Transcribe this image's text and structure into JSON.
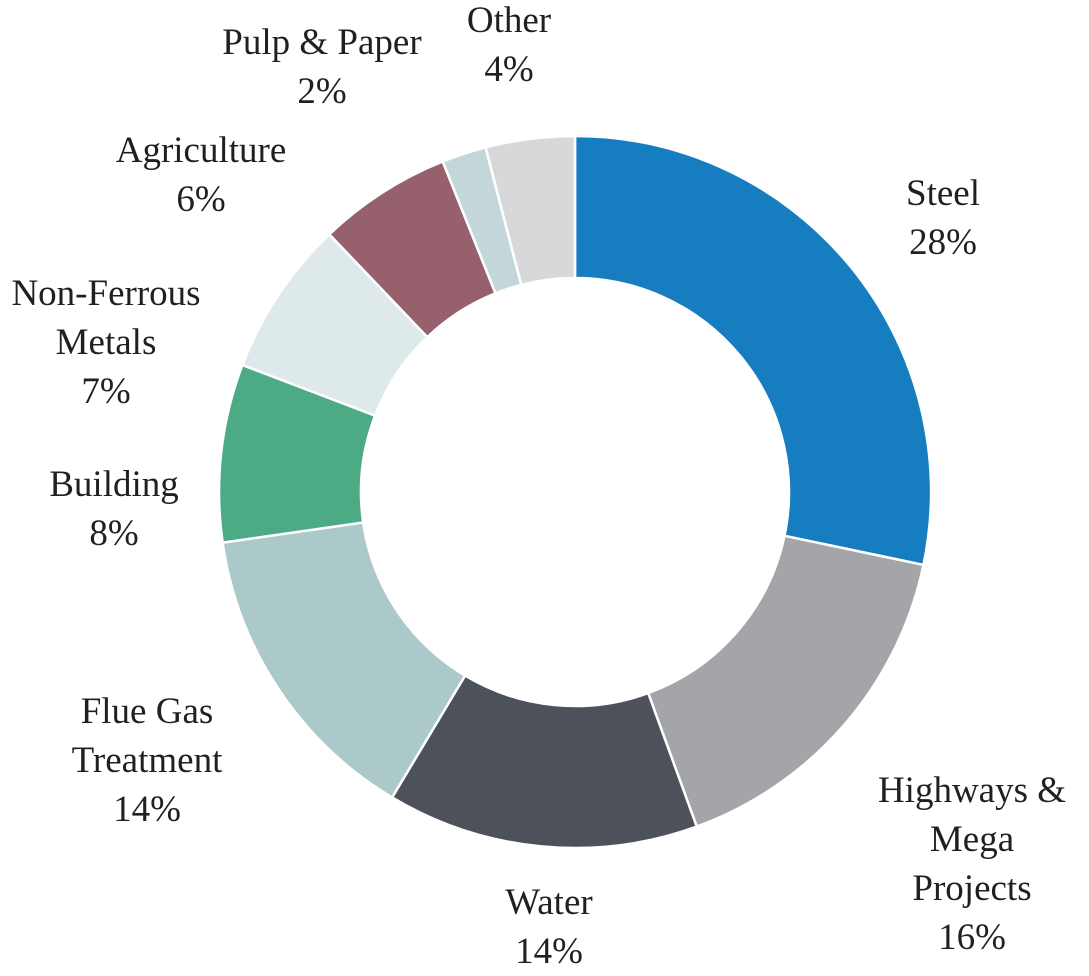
{
  "chart_data": {
    "type": "pie",
    "variant": "donut",
    "title": "",
    "legend": "none",
    "slices": [
      {
        "lines": [
          "Steel"
        ],
        "value": 28,
        "pct_label": "28%",
        "color": "#167dc1"
      },
      {
        "lines": [
          "Highways &",
          "Mega",
          "Projects"
        ],
        "value": 16,
        "pct_label": "16%",
        "color": "#a3a5a8"
      },
      {
        "lines": [
          "Water"
        ],
        "value": 14,
        "pct_label": "14%",
        "color": "#4d525a"
      },
      {
        "lines": [
          "Flue Gas",
          "Treatment"
        ],
        "value": 14,
        "pct_label": "14%",
        "color": "#acc9ca"
      },
      {
        "lines": [
          "Building"
        ],
        "value": 8,
        "pct_label": "8%",
        "color": "#4caa85"
      },
      {
        "lines": [
          "Non-Ferrous",
          "Metals"
        ],
        "value": 7,
        "pct_label": "7%",
        "color": "#dde9eb"
      },
      {
        "lines": [
          "Agriculture"
        ],
        "value": 6,
        "pct_label": "6%",
        "color": "#96606d"
      },
      {
        "lines": [
          "Pulp & Paper"
        ],
        "value": 2,
        "pct_label": "2%",
        "color": "#c3d7db"
      },
      {
        "lines": [
          "Other"
        ],
        "value": 4,
        "pct_label": "4%",
        "color": "#d7d8da"
      }
    ]
  }
}
